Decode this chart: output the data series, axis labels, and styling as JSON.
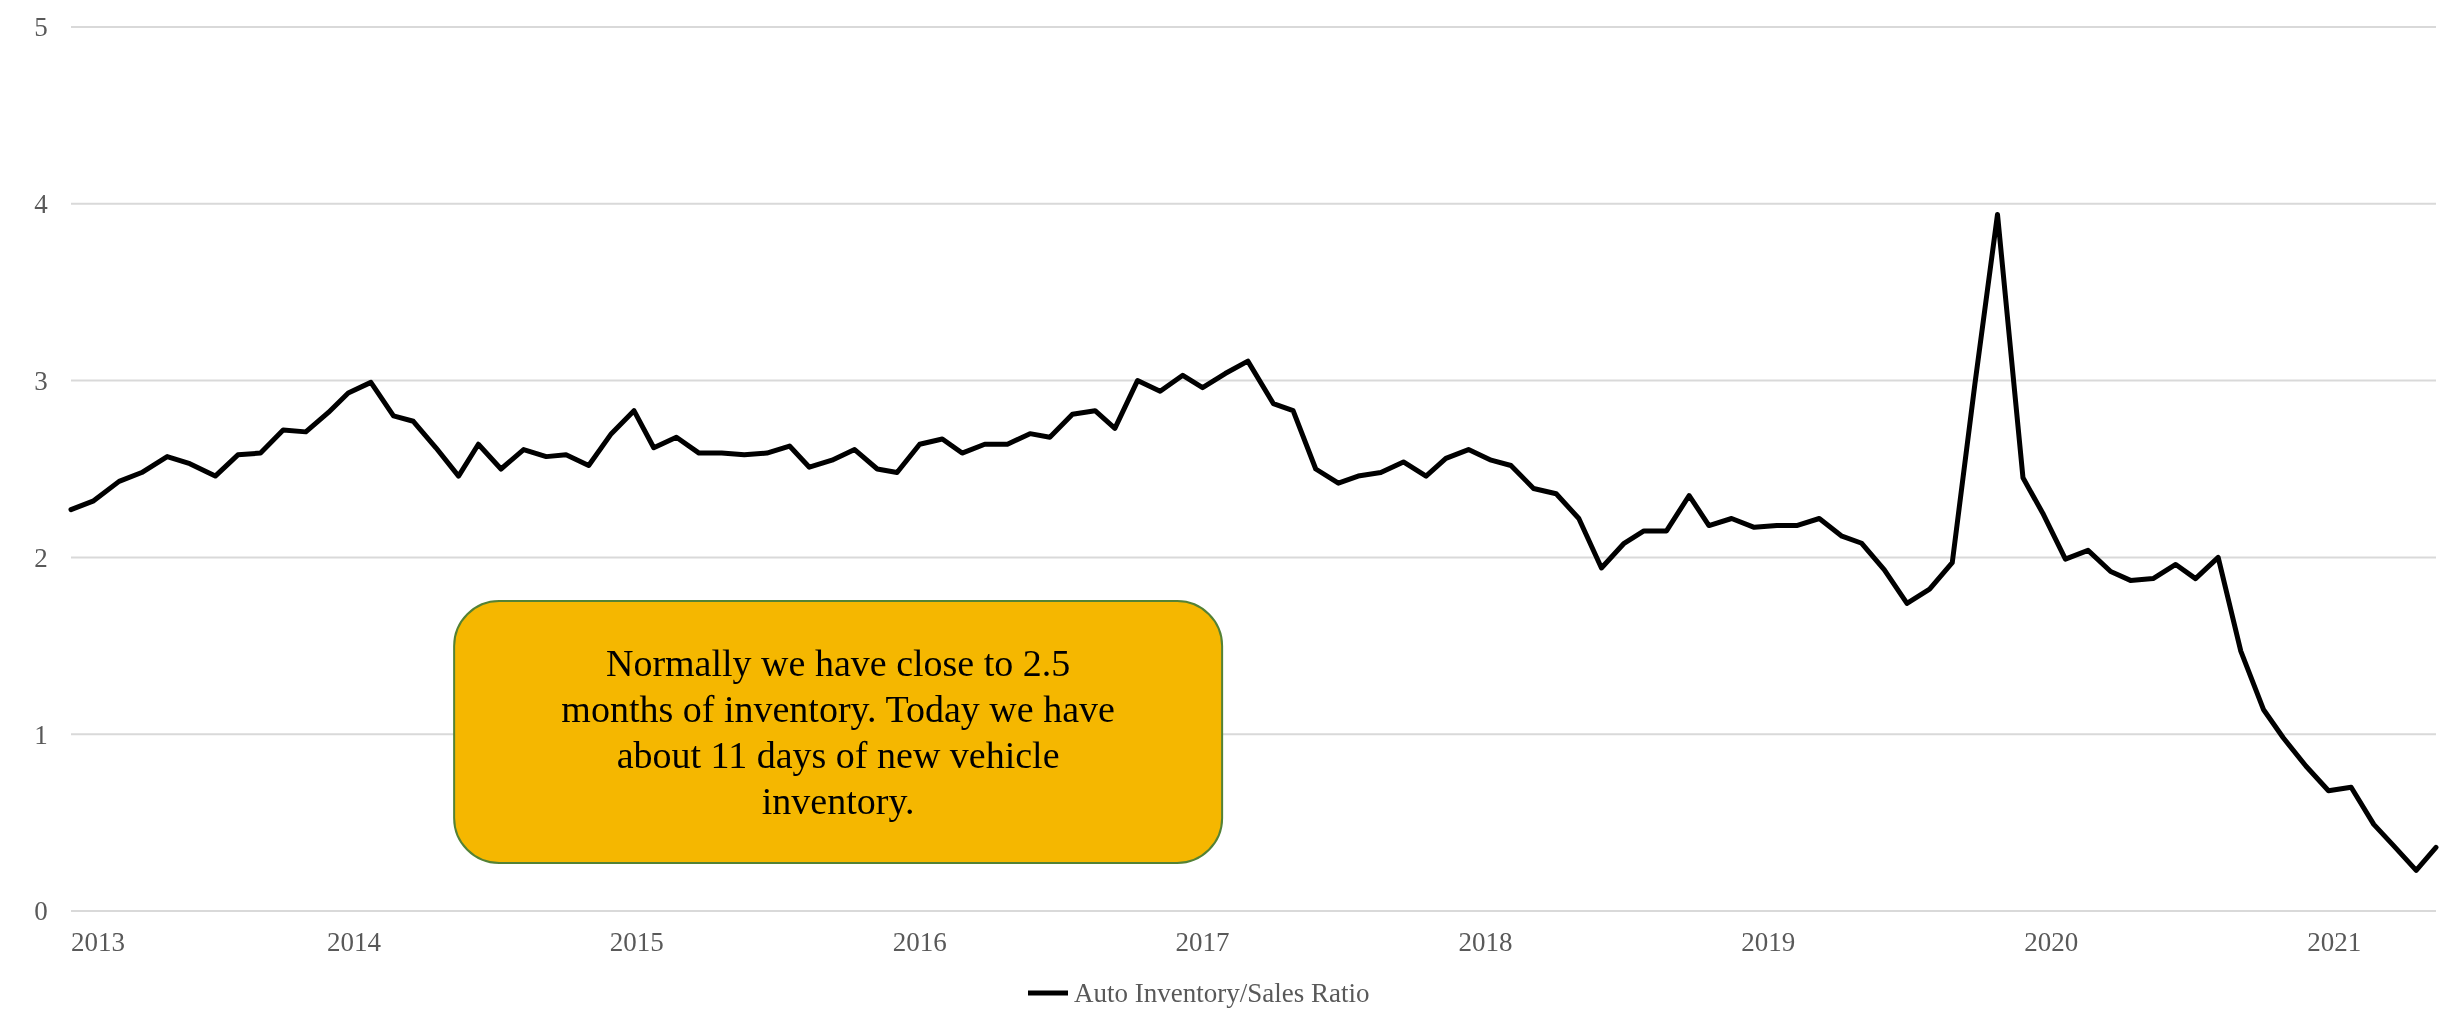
{
  "chart_data": {
    "type": "line",
    "xlim": [
      2013,
      2021.36
    ],
    "xticks": [
      2013,
      2014,
      2015,
      2016,
      2017,
      2018,
      2019,
      2020,
      2021
    ],
    "ylim": [
      0,
      5
    ],
    "yticks": [
      0,
      1,
      2,
      3,
      4,
      5
    ],
    "grid": "y",
    "legend": "bottom",
    "marker": "none",
    "line_style": "solid",
    "annotations": [
      "Normally we have close to 2.5 months of inventory. Today we have about 11 days of new vehicle inventory."
    ],
    "series": [
      {
        "name": "Auto Inventory/Sales Ratio",
        "color": "#000000",
        "x": [
          2013,
          2013.08,
          2013.17,
          2013.25,
          2013.34,
          2013.42,
          2013.51,
          2013.59,
          2013.67,
          2013.75,
          2013.83,
          2013.91,
          2013.98,
          2014.06,
          2014.14,
          2014.21,
          2014.29,
          2014.37,
          2014.44,
          2014.52,
          2014.6,
          2014.68,
          2014.75,
          2014.83,
          2014.91,
          2014.99,
          2015.06,
          2015.14,
          2015.22,
          2015.3,
          2015.38,
          2015.46,
          2015.54,
          2015.61,
          2015.69,
          2015.77,
          2015.85,
          2015.92,
          2016,
          2016.08,
          2016.15,
          2016.23,
          2016.31,
          2016.39,
          2016.46,
          2016.54,
          2016.62,
          2016.69,
          2016.77,
          2016.85,
          2016.93,
          2017,
          2017.08,
          2017.16,
          2017.25,
          2017.32,
          2017.4,
          2017.48,
          2017.55,
          2017.63,
          2017.71,
          2017.79,
          2017.86,
          2017.94,
          2018.02,
          2018.09,
          2018.17,
          2018.25,
          2018.33,
          2018.41,
          2018.49,
          2018.56,
          2018.64,
          2018.72,
          2018.79,
          2018.87,
          2018.95,
          2019.03,
          2019.1,
          2019.18,
          2019.26,
          2019.33,
          2019.41,
          2019.49,
          2019.57,
          2019.65,
          2019.73,
          2019.81,
          2019.9,
          2019.97,
          2020.05,
          2020.13,
          2020.21,
          2020.28,
          2020.36,
          2020.44,
          2020.51,
          2020.59,
          2020.67,
          2020.75,
          2020.82,
          2020.9,
          2020.98,
          2021.06,
          2021.14,
          2021.21,
          2021.29,
          2021.36
        ],
        "values": [
          2.27,
          2.32,
          2.43,
          2.48,
          2.57,
          2.53,
          2.46,
          2.58,
          2.59,
          2.72,
          2.71,
          2.82,
          2.93,
          2.99,
          2.8,
          2.77,
          2.62,
          2.46,
          2.64,
          2.5,
          2.61,
          2.57,
          2.58,
          2.52,
          2.7,
          2.83,
          2.62,
          2.68,
          2.59,
          2.59,
          2.58,
          2.59,
          2.63,
          2.51,
          2.55,
          2.61,
          2.5,
          2.48,
          2.64,
          2.67,
          2.59,
          2.64,
          2.64,
          2.7,
          2.68,
          2.81,
          2.83,
          2.73,
          3,
          2.94,
          3.03,
          2.96,
          3.04,
          3.11,
          2.87,
          2.83,
          2.5,
          2.42,
          2.46,
          2.48,
          2.54,
          2.46,
          2.56,
          2.61,
          2.55,
          2.52,
          2.39,
          2.36,
          2.22,
          1.94,
          2.08,
          2.15,
          2.15,
          2.35,
          2.18,
          2.22,
          2.17,
          2.18,
          2.18,
          2.22,
          2.12,
          2.08,
          1.93,
          1.74,
          1.82,
          1.97,
          2.98,
          3.94,
          2.45,
          2.25,
          1.99,
          2.04,
          1.92,
          1.87,
          1.88,
          1.96,
          1.88,
          2,
          1.47,
          1.14,
          0.98,
          0.82,
          0.68,
          0.7,
          0.49,
          0.37,
          0.23,
          0.36
        ]
      }
    ]
  }
}
